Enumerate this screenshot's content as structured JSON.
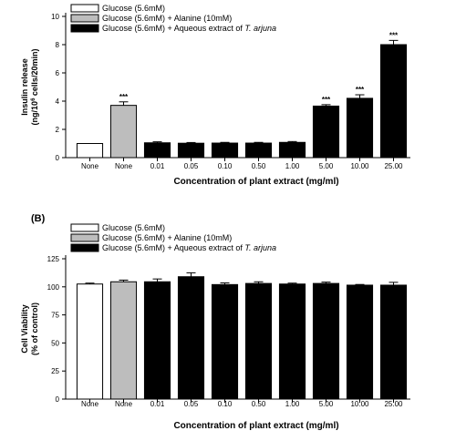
{
  "chart_data": [
    {
      "type": "bar",
      "panel_label": "",
      "categories": [
        "None",
        "None",
        "0.01",
        "0.05",
        "0.10",
        "0.50",
        "1.00",
        "5.00",
        "10.00",
        "25.00"
      ],
      "values": [
        1.0,
        3.7,
        1.05,
        1.02,
        1.03,
        1.03,
        1.08,
        3.65,
        4.2,
        8.0
      ],
      "errors": [
        0.0,
        0.25,
        0.07,
        0.05,
        0.05,
        0.05,
        0.06,
        0.1,
        0.25,
        0.3
      ],
      "groups": [
        "control",
        "alanine",
        "extract",
        "extract",
        "extract",
        "extract",
        "extract",
        "extract",
        "extract",
        "extract"
      ],
      "significance": [
        "",
        "***",
        "",
        "",
        "",
        "",
        "",
        "***",
        "***",
        "***"
      ],
      "ylabel_line1": "Insulin release",
      "ylabel_line2_prefix": "(ng/10",
      "ylabel_line2_sup": "6",
      "ylabel_line2_suffix": " cells/20min)",
      "xlabel": "Concentration of plant extract (mg/ml)",
      "ylim": [
        0,
        10
      ],
      "yticks": [
        0,
        2,
        4,
        6,
        8,
        10
      ],
      "legend": [
        {
          "group": "control",
          "text": "Glucose (5.6mM)",
          "italic": ""
        },
        {
          "group": "alanine",
          "text": "Glucose (5.6mM) + Alanine (10mM)",
          "italic": ""
        },
        {
          "group": "extract",
          "text": "Glucose (5.6mM) + Aqueous extract of ",
          "italic": "T. arjuna"
        }
      ],
      "legend_position": "top-left",
      "grid": false
    },
    {
      "type": "bar",
      "panel_label": "(B)",
      "categories": [
        "None",
        "None",
        "0.01",
        "0.05",
        "0.10",
        "0.50",
        "1.00",
        "5.00",
        "10.00",
        "25.00"
      ],
      "values": [
        102.5,
        104.5,
        104.5,
        109,
        102,
        103,
        102.5,
        103,
        101.5,
        101.5
      ],
      "errors": [
        0.8,
        1.5,
        2.5,
        3.5,
        1.5,
        1.5,
        0.8,
        1.2,
        0.6,
        2.5
      ],
      "groups": [
        "control",
        "alanine",
        "extract",
        "extract",
        "extract",
        "extract",
        "extract",
        "extract",
        "extract",
        "extract"
      ],
      "significance": [
        "",
        "",
        "",
        "",
        "",
        "",
        "",
        "",
        "",
        ""
      ],
      "ylabel_line1": "Cell Viability",
      "ylabel_line2_prefix": "(% of control)",
      "ylabel_line2_sup": "",
      "ylabel_line2_suffix": "",
      "xlabel": "Concentration of plant extract (mg/ml)",
      "ylim": [
        0,
        125
      ],
      "yticks": [
        0,
        25,
        50,
        75,
        100,
        125
      ],
      "legend": [
        {
          "group": "control",
          "text": "Glucose (5.6mM)",
          "italic": ""
        },
        {
          "group": "alanine",
          "text": "Glucose (5.6mM) + Alanine (10mM)",
          "italic": ""
        },
        {
          "group": "extract",
          "text": "Glucose (5.6mM) + Aqueous extract of ",
          "italic": "T. arjuna"
        }
      ],
      "legend_position": "top-left",
      "grid": false
    }
  ],
  "colors": {
    "control": "#ffffff",
    "alanine": "#bdbdbd",
    "extract": "#000000",
    "stroke": "#000000"
  }
}
